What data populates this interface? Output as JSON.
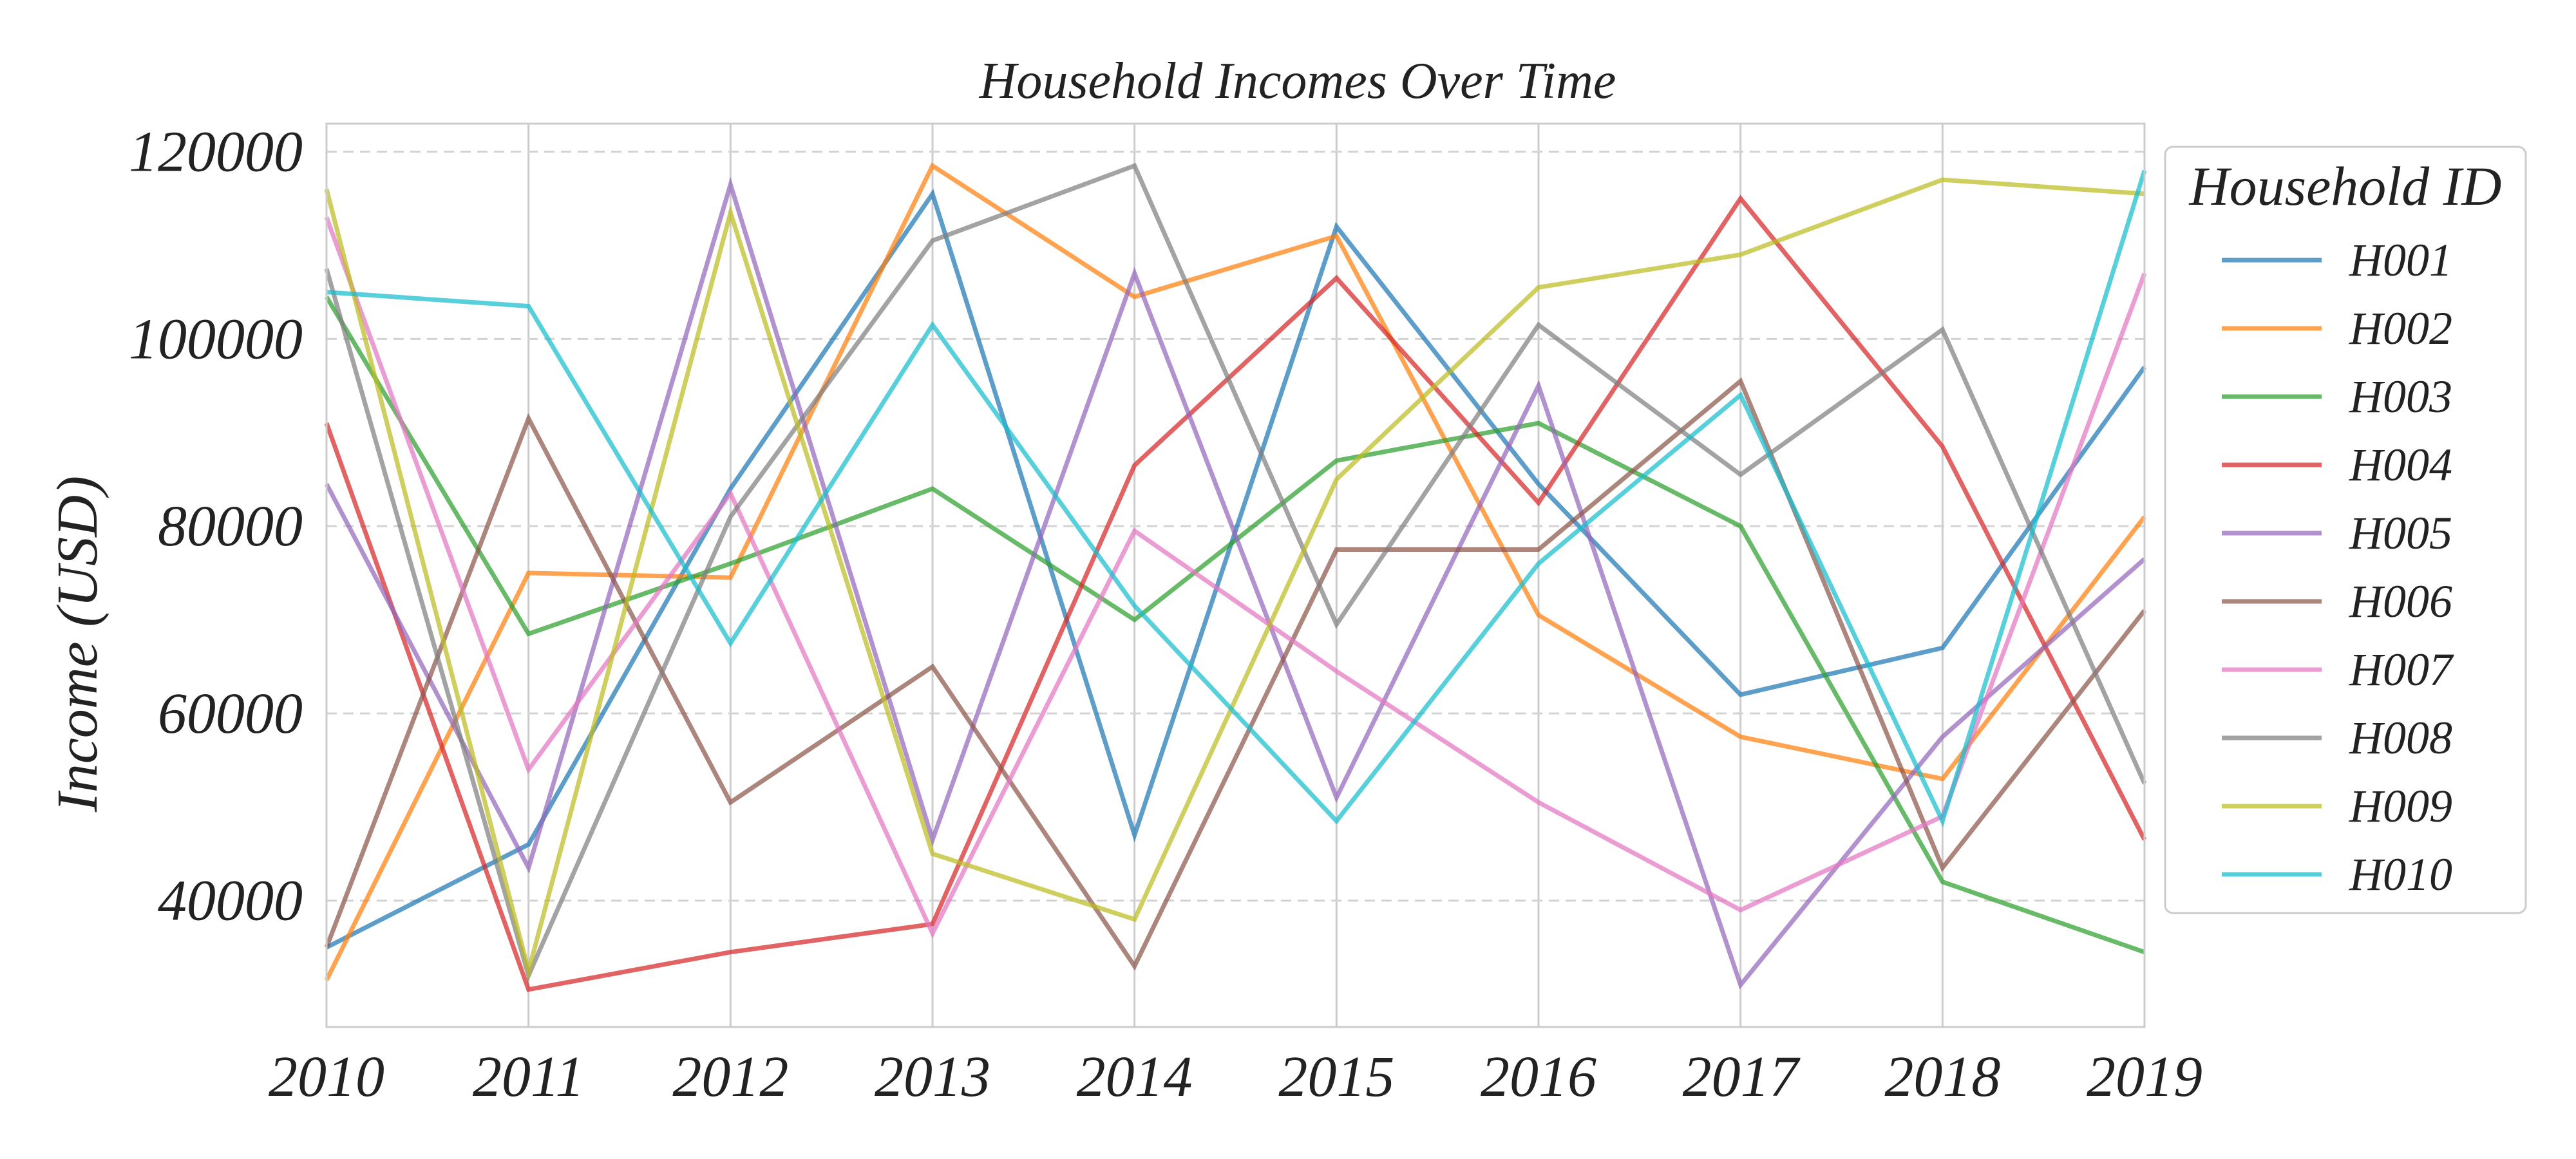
{
  "chart_data": {
    "type": "line",
    "title": "Household Incomes Over Time",
    "xlabel": "",
    "ylabel": "Income (USD)",
    "x": [
      2010,
      2011,
      2012,
      2013,
      2014,
      2015,
      2016,
      2017,
      2018,
      2019
    ],
    "xlim": [
      2010,
      2019
    ],
    "ylim": [
      26500,
      123000
    ],
    "yticks": [
      40000,
      60000,
      80000,
      100000,
      120000
    ],
    "grid": true,
    "legend": {
      "title": "Household ID",
      "placement": "outside-right"
    },
    "series": [
      {
        "name": "H001",
        "color": "#1f77b4",
        "values": [
          35000,
          46000,
          84000,
          115500,
          47000,
          112000,
          84500,
          62000,
          67000,
          97000
        ]
      },
      {
        "name": "H002",
        "color": "#ff7f0e",
        "values": [
          31500,
          75000,
          74500,
          118500,
          104500,
          111000,
          70500,
          57500,
          53000,
          81000
        ]
      },
      {
        "name": "H003",
        "color": "#2ca02c",
        "values": [
          104500,
          68500,
          76000,
          84000,
          70000,
          87000,
          91000,
          80000,
          42000,
          34500
        ]
      },
      {
        "name": "H004",
        "color": "#d62728",
        "values": [
          91000,
          30500,
          34500,
          37500,
          86500,
          106500,
          82500,
          115000,
          88500,
          46500
        ]
      },
      {
        "name": "H005",
        "color": "#9467bd",
        "values": [
          84500,
          43500,
          116500,
          46500,
          107000,
          51000,
          95000,
          31000,
          57500,
          76500
        ]
      },
      {
        "name": "H006",
        "color": "#8c564b",
        "values": [
          35000,
          91500,
          50500,
          65000,
          33000,
          77500,
          77500,
          95500,
          43500,
          71000
        ]
      },
      {
        "name": "H007",
        "color": "#e377c2",
        "values": [
          113000,
          54000,
          83500,
          36500,
          79500,
          64500,
          50500,
          39000,
          49000,
          107000
        ]
      },
      {
        "name": "H008",
        "color": "#7f7f7f",
        "values": [
          107500,
          32000,
          81000,
          110500,
          118500,
          69500,
          101500,
          85500,
          101000,
          52500
        ]
      },
      {
        "name": "H009",
        "color": "#bcbd22",
        "values": [
          116000,
          32500,
          113500,
          45000,
          38000,
          85000,
          105500,
          109000,
          117000,
          115500
        ]
      },
      {
        "name": "H010",
        "color": "#17becf",
        "values": [
          105000,
          103500,
          67500,
          101500,
          71500,
          48500,
          76000,
          94000,
          48500,
          118000
        ]
      }
    ]
  }
}
